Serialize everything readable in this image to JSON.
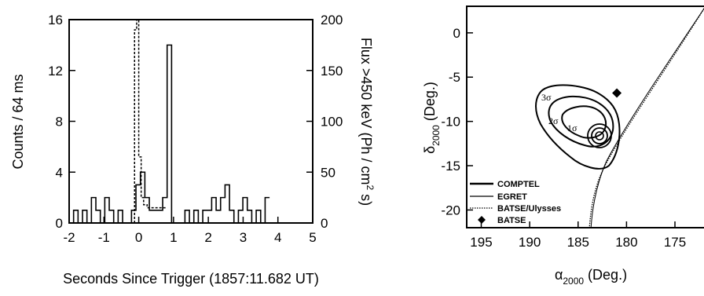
{
  "chart_data": [
    {
      "type": "line",
      "xlabel": "Seconds Since Trigger (1857:11.682 UT)",
      "ylabel": "Counts / 64 ms",
      "y2label": "Flux >450 keV (Ph / cm",
      "y2label_sup": "2",
      "y2label_tail": " s)",
      "xlim": [
        -2,
        5
      ],
      "ylim": [
        0,
        16
      ],
      "y2lim": [
        0,
        200
      ],
      "x_ticks": [
        "-2",
        "-1",
        "0",
        "1",
        "2",
        "3",
        "4",
        "5"
      ],
      "y_ticks": [
        "0",
        "4",
        "8",
        "12",
        "16"
      ],
      "y2_ticks": [
        "0",
        "50",
        "100",
        "150",
        "200"
      ],
      "series": [
        {
          "style": "solid",
          "x": [
            -2.0,
            -1.872,
            -1.744,
            -1.616,
            -1.488,
            -1.36,
            -1.232,
            -1.104,
            -0.976,
            -0.848,
            -0.72,
            -0.592,
            -0.464,
            -0.336,
            -0.208,
            -0.08,
            0.048,
            0.176,
            0.304,
            0.432,
            0.56,
            0.688,
            0.816,
            0.944,
            1.072,
            1.2,
            1.328,
            1.456,
            1.584,
            1.712,
            1.84,
            1.968,
            2.096,
            2.224,
            2.352,
            2.48,
            2.608,
            2.736,
            2.864,
            2.992,
            3.12,
            3.248,
            3.376,
            3.504,
            3.632
          ],
          "values": [
            0,
            1,
            0,
            1,
            0,
            2,
            1,
            0,
            2,
            1,
            0,
            1,
            0,
            0,
            1,
            3,
            4,
            2,
            1,
            1,
            1,
            2,
            14,
            0,
            0,
            0,
            1,
            0,
            1,
            0,
            1,
            1,
            2,
            1,
            2,
            3,
            1,
            0,
            1,
            2,
            1,
            0,
            1,
            0,
            2
          ]
        },
        {
          "style": "dashed",
          "axis": "right",
          "x": [
            -0.12,
            -0.06,
            0.0,
            0.07,
            0.14,
            0.24,
            0.4
          ],
          "values": [
            190,
            200,
            65,
            25,
            18,
            15,
            15
          ]
        }
      ]
    },
    {
      "type": "contour",
      "xlabel": "α",
      "xlabel_sub": "2000",
      "xlabel_tail": " (Deg.)",
      "ylabel": "δ",
      "ylabel_sub": "2000",
      "ylabel_tail": " (Deg.)",
      "xlim": [
        196.5,
        172
      ],
      "ylim": [
        -22,
        3
      ],
      "x_ticks": [
        "195",
        "190",
        "185",
        "180",
        "175"
      ],
      "y_ticks": [
        "0",
        "-5",
        "-10",
        "-15",
        "-20"
      ],
      "contour_labels": [
        "3σ",
        "2σ",
        "1σ"
      ],
      "batse_point": [
        181,
        -6.8
      ],
      "legend": [
        {
          "label": "COMPTEL",
          "style": "solid-thick"
        },
        {
          "label": "EGRET",
          "style": "solid-thin"
        },
        {
          "label": "BATSE/Ulysses",
          "style": "dotted"
        },
        {
          "label": "BATSE",
          "style": "diamond"
        }
      ]
    }
  ]
}
